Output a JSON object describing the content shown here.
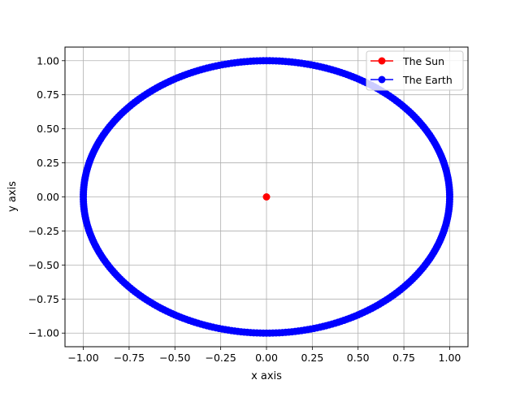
{
  "chart_data": {
    "type": "scatter",
    "title": "",
    "xlabel": "x axis",
    "ylabel": "y axis",
    "xlim": [
      -1.1,
      1.1
    ],
    "ylim": [
      -1.1,
      1.1
    ],
    "x_ticks": [
      -1.0,
      -0.75,
      -0.5,
      -0.25,
      0.0,
      0.25,
      0.5,
      0.75,
      1.0
    ],
    "x_tick_labels": [
      "−1.00",
      "−0.75",
      "−0.50",
      "−0.25",
      "0.00",
      "0.25",
      "0.50",
      "0.75",
      "1.00"
    ],
    "y_ticks": [
      -1.0,
      -0.75,
      -0.5,
      -0.25,
      0.0,
      0.25,
      0.5,
      0.75,
      1.0
    ],
    "y_tick_labels": [
      "−1.00",
      "−0.75",
      "−0.50",
      "−0.25",
      "0.00",
      "0.25",
      "0.50",
      "0.75",
      "1.00"
    ],
    "grid": true,
    "legend_position": "top-right",
    "series": [
      {
        "name": "The Sun",
        "color": "#ff0000",
        "marker": "circle",
        "points": [
          [
            0.0,
            0.0
          ]
        ]
      },
      {
        "name": "The Earth",
        "color": "#0000ff",
        "marker": "circle",
        "description_shape": "circular orbit of radius 1 centred on origin",
        "radius": 1.0,
        "num_points": 360
      }
    ]
  }
}
